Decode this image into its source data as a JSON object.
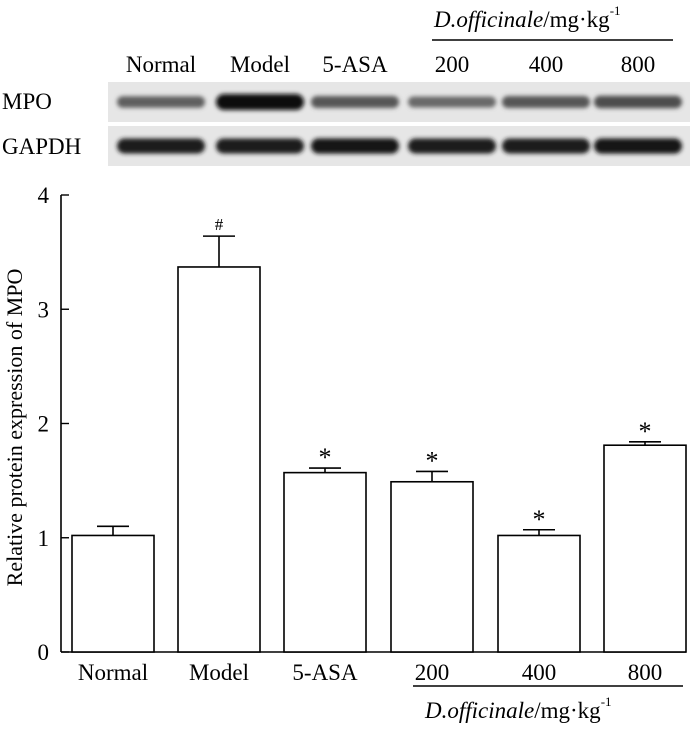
{
  "blot": {
    "group_header_italic": "D.officinale",
    "group_header_unit": "/mg·kg",
    "group_header_exp": "-1",
    "lane_labels": [
      "Normal",
      "Model",
      "5-ASA",
      "200",
      "400",
      "800"
    ],
    "rows": [
      {
        "label": "MPO",
        "intensity": [
          0.55,
          1.0,
          0.6,
          0.5,
          0.6,
          0.65
        ]
      },
      {
        "label": "GAPDH",
        "intensity": [
          0.9,
          0.9,
          0.92,
          0.9,
          0.9,
          0.92
        ]
      }
    ]
  },
  "chart_data": {
    "type": "bar",
    "categories": [
      "Normal",
      "Model",
      "5-ASA",
      "200",
      "400",
      "800"
    ],
    "values": [
      1.02,
      3.37,
      1.57,
      1.49,
      1.02,
      1.81
    ],
    "errors": [
      0.08,
      0.27,
      0.04,
      0.09,
      0.05,
      0.03
    ],
    "annotations": [
      "",
      "#",
      "*",
      "*",
      "*",
      "*"
    ],
    "ylabel": "Relative protein expression of MPO",
    "ylim": [
      0,
      4
    ],
    "yticks": [
      "0",
      "1",
      "2",
      "3",
      "4"
    ],
    "group_label_italic": "D.officinale",
    "group_label_unit": "/mg·kg",
    "group_label_exp": "-1",
    "grid": false,
    "bar_fill": "#ffffff",
    "bar_stroke": "#000000"
  }
}
